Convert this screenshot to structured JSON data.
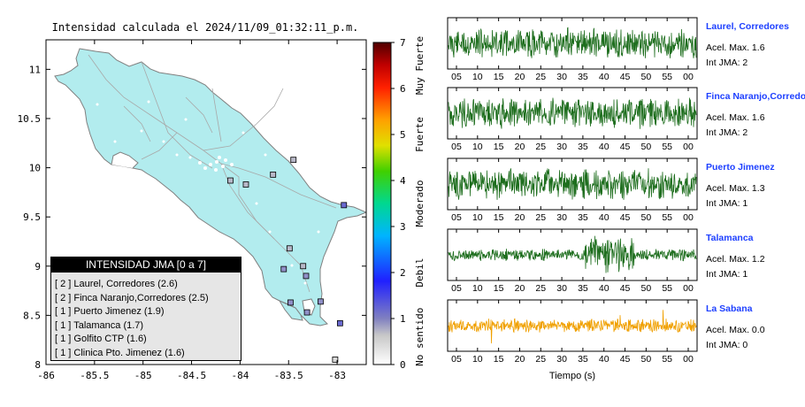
{
  "title": "Intensidad calculada el 2024/11/09_01:32:11_p.m.",
  "map": {
    "x_ticks": [
      "-86",
      "-85.5",
      "-85",
      "-84.5",
      "-84",
      "-83.5",
      "-83"
    ],
    "y_ticks": [
      "11",
      "10.5",
      "10",
      "9.5",
      "9",
      "8.5",
      "8"
    ],
    "land_color": "#b2ecee"
  },
  "colorbar": {
    "ticks": [
      "0",
      "1",
      "2",
      "3",
      "4",
      "5",
      "6",
      "7"
    ],
    "category_labels": [
      "No sentido",
      "Debil",
      "Moderado",
      "Fuerte",
      "Muy Fuerte"
    ]
  },
  "legend": {
    "title": "INTENSIDAD JMA [0 a 7]",
    "items": [
      "[ 2 ] Laurel, Corredores (2.6)",
      "[ 2 ] Finca Naranjo,Corredores (2.5)",
      "[ 1 ] Puerto Jimenez (1.9)",
      "[ 1 ] Talamanca (1.7)",
      "[ 1 ] Golfito CTP (1.6)",
      "[ 1 ] Clinica Pto. Jimenez (1.6)"
    ]
  },
  "chart_data": [
    {
      "type": "scatter",
      "title": "Intensidad calculada el 2024/11/09_01:32:11_p.m.",
      "xlim": [
        -86,
        -82.7
      ],
      "ylim": [
        8,
        11.3
      ],
      "colorscale": "JMA 0-7",
      "stations": [
        {
          "lon": -82.93,
          "lat": 9.62,
          "jma": 2.6
        },
        {
          "lon": -82.97,
          "lat": 8.42,
          "jma": 2.5
        },
        {
          "lon": -83.48,
          "lat": 8.63,
          "jma": 1.9
        },
        {
          "lon": -83.55,
          "lat": 8.97,
          "jma": 1.7
        },
        {
          "lon": -83.17,
          "lat": 8.64,
          "jma": 1.6
        },
        {
          "lon": -83.31,
          "lat": 8.53,
          "jma": 1.6
        },
        {
          "lon": -83.32,
          "lat": 8.9,
          "jma": 1.5
        },
        {
          "lon": -83.35,
          "lat": 9.0,
          "jma": 1.3
        },
        {
          "lon": -83.49,
          "lat": 9.18,
          "jma": 1.2
        },
        {
          "lon": -83.66,
          "lat": 9.93,
          "jma": 1.0
        },
        {
          "lon": -83.94,
          "lat": 9.83,
          "jma": 0.9
        },
        {
          "lon": -84.1,
          "lat": 9.87,
          "jma": 0.8
        },
        {
          "lon": -83.45,
          "lat": 10.08,
          "jma": 0.8
        },
        {
          "lon": -83.02,
          "lat": 8.05,
          "jma": 0.3
        }
      ]
    },
    {
      "type": "line",
      "xlabel": "Tiempo (s)",
      "x_ticks": [
        "05",
        "10",
        "15",
        "20",
        "25",
        "30",
        "35",
        "40",
        "45",
        "50",
        "55",
        "00"
      ],
      "series": [
        {
          "name": "Laurel, Corredores",
          "acel_label": "Acel. Max. 1.6",
          "jma_label": "Int JMA: 2",
          "color": "#1e6e1e"
        },
        {
          "name": "Finca Naranjo,Corredores",
          "acel_label": "Acel. Max. 1.6",
          "jma_label": "Int JMA: 2",
          "color": "#1e6e1e"
        },
        {
          "name": "Puerto Jimenez",
          "acel_label": "Acel. Max. 1.3",
          "jma_label": "Int JMA: 1",
          "color": "#1e6e1e"
        },
        {
          "name": "Talamanca",
          "acel_label": "Acel. Max. 1.2",
          "jma_label": "Int JMA: 1",
          "color": "#1e6e1e"
        },
        {
          "name": "La Sabana",
          "acel_label": "Acel. Max. 0.0",
          "jma_label": "Int JMA: 0",
          "color": "#f0a000"
        }
      ]
    }
  ]
}
